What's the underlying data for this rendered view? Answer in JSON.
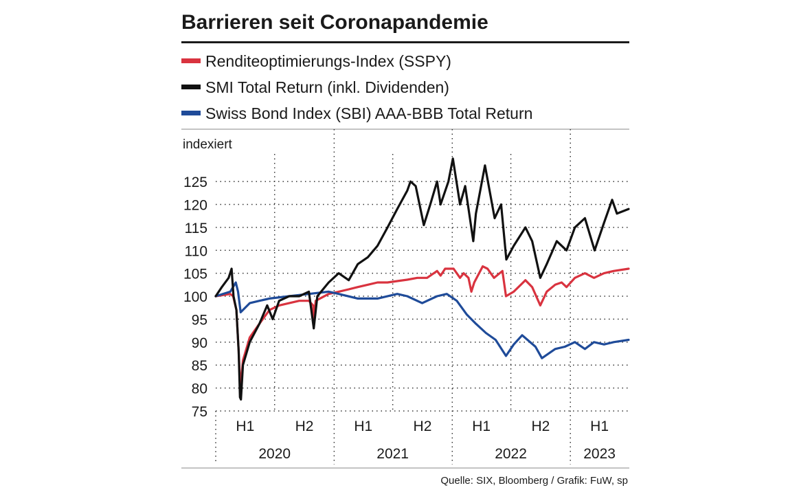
{
  "chart_data": {
    "type": "line",
    "title": "Barrieren seit Coronapandemie",
    "ylabel": "indexiert",
    "ylim": [
      75,
      131
    ],
    "yticks": [
      75,
      80,
      85,
      90,
      95,
      100,
      105,
      110,
      115,
      120,
      125
    ],
    "xlim": [
      "2020-01-01",
      "2023-06-30"
    ],
    "x_half_labels": [
      "H1",
      "H2",
      "H1",
      "H2",
      "H1",
      "H2",
      "H1"
    ],
    "x_year_labels": [
      "2020",
      "2021",
      "2022",
      "2023"
    ],
    "legend_position": "top",
    "grid": true,
    "source": "Quelle: SIX, Bloomberg / Grafik: FuW, sp",
    "series": [
      {
        "name": "Renditeoptimierungs-Index (SSPY)",
        "color": "#d9333f",
        "points": [
          [
            "2020-01-01",
            100
          ],
          [
            "2020-02-15",
            100.5
          ],
          [
            "2020-02-24",
            100
          ],
          [
            "2020-03-05",
            97
          ],
          [
            "2020-03-12",
            88
          ],
          [
            "2020-03-17",
            80
          ],
          [
            "2020-03-19",
            81
          ],
          [
            "2020-03-25",
            86
          ],
          [
            "2020-04-15",
            91
          ],
          [
            "2020-05-15",
            94
          ],
          [
            "2020-06-15",
            97
          ],
          [
            "2020-07-15",
            98
          ],
          [
            "2020-08-15",
            98.5
          ],
          [
            "2020-09-15",
            99
          ],
          [
            "2020-10-15",
            99
          ],
          [
            "2020-10-28",
            98
          ],
          [
            "2020-10-30",
            95
          ],
          [
            "2020-11-05",
            99
          ],
          [
            "2020-12-15",
            100.5
          ],
          [
            "2021-01-15",
            101
          ],
          [
            "2021-02-15",
            101.5
          ],
          [
            "2021-03-15",
            102
          ],
          [
            "2021-04-15",
            102.5
          ],
          [
            "2021-05-15",
            103
          ],
          [
            "2021-06-15",
            103
          ],
          [
            "2021-07-15",
            103.3
          ],
          [
            "2021-08-15",
            103.6
          ],
          [
            "2021-09-15",
            104
          ],
          [
            "2021-10-15",
            104
          ],
          [
            "2021-11-15",
            105.5
          ],
          [
            "2021-11-26",
            104.5
          ],
          [
            "2021-12-10",
            106
          ],
          [
            "2022-01-05",
            106
          ],
          [
            "2022-01-25",
            104
          ],
          [
            "2022-02-05",
            105
          ],
          [
            "2022-02-20",
            104
          ],
          [
            "2022-03-01",
            101
          ],
          [
            "2022-03-10",
            103
          ],
          [
            "2022-04-05",
            106.5
          ],
          [
            "2022-04-20",
            106
          ],
          [
            "2022-05-10",
            104
          ],
          [
            "2022-06-05",
            105.5
          ],
          [
            "2022-06-16",
            100
          ],
          [
            "2022-07-10",
            101
          ],
          [
            "2022-08-15",
            103.5
          ],
          [
            "2022-09-05",
            102
          ],
          [
            "2022-09-30",
            98
          ],
          [
            "2022-10-20",
            101
          ],
          [
            "2022-11-15",
            102.5
          ],
          [
            "2022-12-05",
            103
          ],
          [
            "2022-12-20",
            102
          ],
          [
            "2023-01-15",
            104
          ],
          [
            "2023-02-15",
            105
          ],
          [
            "2023-03-15",
            104
          ],
          [
            "2023-04-15",
            105
          ],
          [
            "2023-05-15",
            105.5
          ],
          [
            "2023-06-30",
            106
          ]
        ]
      },
      {
        "name": "SMI Total Return (inkl. Dividenden)",
        "color": "#111111",
        "points": [
          [
            "2020-01-01",
            100
          ],
          [
            "2020-01-20",
            102
          ],
          [
            "2020-02-10",
            104
          ],
          [
            "2020-02-19",
            106
          ],
          [
            "2020-02-25",
            100
          ],
          [
            "2020-03-05",
            97
          ],
          [
            "2020-03-12",
            88
          ],
          [
            "2020-03-16",
            78
          ],
          [
            "2020-03-19",
            77.5
          ],
          [
            "2020-03-25",
            85
          ],
          [
            "2020-04-15",
            90
          ],
          [
            "2020-05-15",
            94
          ],
          [
            "2020-06-08",
            98
          ],
          [
            "2020-06-25",
            95
          ],
          [
            "2020-07-15",
            99
          ],
          [
            "2020-08-15",
            100
          ],
          [
            "2020-09-15",
            100
          ],
          [
            "2020-10-15",
            101
          ],
          [
            "2020-10-30",
            93
          ],
          [
            "2020-11-10",
            100
          ],
          [
            "2020-12-15",
            103
          ],
          [
            "2021-01-15",
            105
          ],
          [
            "2021-02-15",
            103.5
          ],
          [
            "2021-03-15",
            107
          ],
          [
            "2021-04-15",
            108.5
          ],
          [
            "2021-05-15",
            111
          ],
          [
            "2021-06-15",
            115
          ],
          [
            "2021-07-15",
            119
          ],
          [
            "2021-08-15",
            123
          ],
          [
            "2021-08-25",
            125
          ],
          [
            "2021-09-10",
            124
          ],
          [
            "2021-10-05",
            115.5
          ],
          [
            "2021-10-25",
            120
          ],
          [
            "2021-11-15",
            125
          ],
          [
            "2021-11-26",
            120
          ],
          [
            "2021-12-20",
            125
          ],
          [
            "2022-01-03",
            130
          ],
          [
            "2022-01-25",
            120
          ],
          [
            "2022-02-10",
            124
          ],
          [
            "2022-03-07",
            112
          ],
          [
            "2022-03-15",
            118
          ],
          [
            "2022-04-12",
            128.5
          ],
          [
            "2022-05-12",
            117
          ],
          [
            "2022-06-01",
            120
          ],
          [
            "2022-06-17",
            108
          ],
          [
            "2022-07-10",
            111
          ],
          [
            "2022-08-15",
            115
          ],
          [
            "2022-09-05",
            112
          ],
          [
            "2022-09-30",
            104
          ],
          [
            "2022-10-20",
            107
          ],
          [
            "2022-11-20",
            112
          ],
          [
            "2022-12-20",
            110
          ],
          [
            "2023-01-15",
            115
          ],
          [
            "2023-02-15",
            117
          ],
          [
            "2023-03-17",
            110
          ],
          [
            "2023-04-15",
            116
          ],
          [
            "2023-05-10",
            121
          ],
          [
            "2023-05-25",
            118
          ],
          [
            "2023-06-30",
            119
          ]
        ]
      },
      {
        "name": "Swiss Bond Index (SBI) AAA-BBB Total Return",
        "color": "#1f4b99",
        "points": [
          [
            "2020-01-01",
            100
          ],
          [
            "2020-02-15",
            101
          ],
          [
            "2020-03-03",
            103
          ],
          [
            "2020-03-10",
            101
          ],
          [
            "2020-03-18",
            96.5
          ],
          [
            "2020-04-15",
            98.5
          ],
          [
            "2020-05-15",
            99
          ],
          [
            "2020-06-15",
            99.5
          ],
          [
            "2020-08-15",
            100
          ],
          [
            "2020-10-15",
            100.5
          ],
          [
            "2020-12-15",
            101
          ],
          [
            "2021-01-15",
            100.5
          ],
          [
            "2021-03-15",
            99.5
          ],
          [
            "2021-05-15",
            99.5
          ],
          [
            "2021-07-15",
            100.5
          ],
          [
            "2021-08-15",
            100
          ],
          [
            "2021-09-30",
            98.5
          ],
          [
            "2021-11-15",
            100
          ],
          [
            "2021-12-15",
            100.5
          ],
          [
            "2022-01-15",
            99
          ],
          [
            "2022-02-15",
            96
          ],
          [
            "2022-03-15",
            94
          ],
          [
            "2022-04-15",
            92
          ],
          [
            "2022-05-15",
            90.5
          ],
          [
            "2022-06-16",
            87
          ],
          [
            "2022-07-10",
            89.5
          ],
          [
            "2022-08-05",
            91.5
          ],
          [
            "2022-09-15",
            89
          ],
          [
            "2022-10-05",
            86.5
          ],
          [
            "2022-11-15",
            88.5
          ],
          [
            "2022-12-15",
            89
          ],
          [
            "2023-01-15",
            90
          ],
          [
            "2023-02-15",
            88.5
          ],
          [
            "2023-03-15",
            90
          ],
          [
            "2023-04-15",
            89.5
          ],
          [
            "2023-05-15",
            90
          ],
          [
            "2023-06-30",
            90.5
          ]
        ]
      }
    ]
  }
}
